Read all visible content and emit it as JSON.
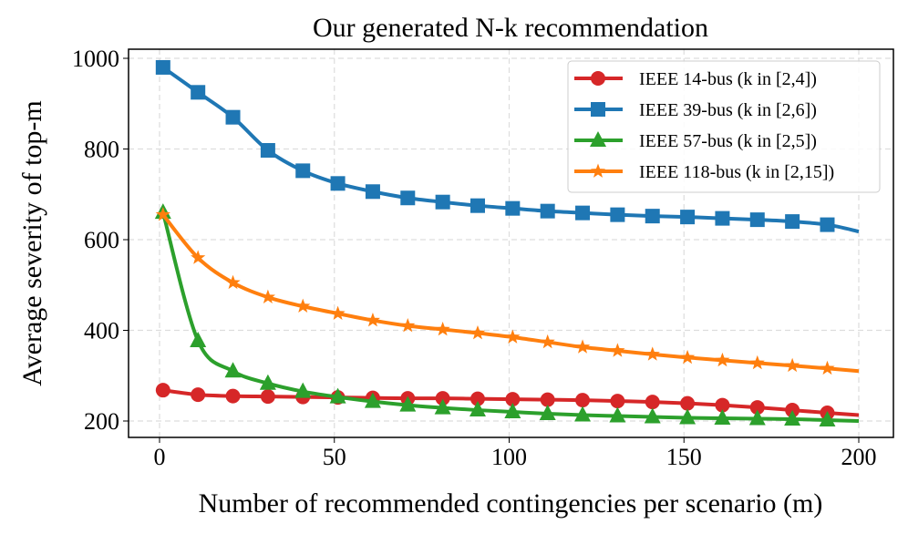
{
  "chart_data": {
    "type": "line",
    "title": "Our generated N-k recommendation",
    "xlabel": "Number of recommended contingencies per scenario (m)",
    "ylabel": "Average severity of top-m",
    "xlim": [
      -10,
      210
    ],
    "ylim": [
      160,
      1030
    ],
    "xticks": [
      0,
      50,
      100,
      150,
      200
    ],
    "yticks": [
      200,
      400,
      600,
      800,
      1000
    ],
    "grid": true,
    "legend_position": "top-right",
    "x": [
      1,
      11,
      21,
      31,
      41,
      51,
      61,
      71,
      81,
      91,
      101,
      111,
      121,
      131,
      141,
      151,
      161,
      171,
      181,
      191,
      200
    ],
    "series": [
      {
        "name": "IEEE 14-bus (k in [2,4])",
        "color": "#d62728",
        "marker": "circle",
        "values": [
          268,
          258,
          255,
          254,
          253,
          252,
          251,
          250,
          250,
          249,
          248,
          247,
          246,
          244,
          242,
          239,
          235,
          230,
          224,
          218,
          213
        ]
      },
      {
        "name": "IEEE 39-bus (k in [2,6])",
        "color": "#1f77b4",
        "marker": "square",
        "values": [
          980,
          925,
          870,
          797,
          752,
          724,
          706,
          692,
          683,
          675,
          669,
          663,
          659,
          655,
          652,
          650,
          647,
          644,
          640,
          633,
          618
        ]
      },
      {
        "name": "IEEE 57-bus (k in [2,5])",
        "color": "#2ca02c",
        "marker": "triangle",
        "values": [
          660,
          377,
          310,
          283,
          265,
          253,
          243,
          235,
          229,
          224,
          220,
          216,
          213,
          211,
          209,
          207,
          206,
          205,
          204,
          202,
          200
        ]
      },
      {
        "name": "IEEE 118-bus (k in [2,15])",
        "color": "#ff7f0e",
        "marker": "star",
        "values": [
          655,
          560,
          505,
          473,
          453,
          437,
          422,
          410,
          402,
          394,
          385,
          374,
          363,
          355,
          347,
          340,
          334,
          328,
          322,
          316,
          310
        ]
      }
    ]
  }
}
